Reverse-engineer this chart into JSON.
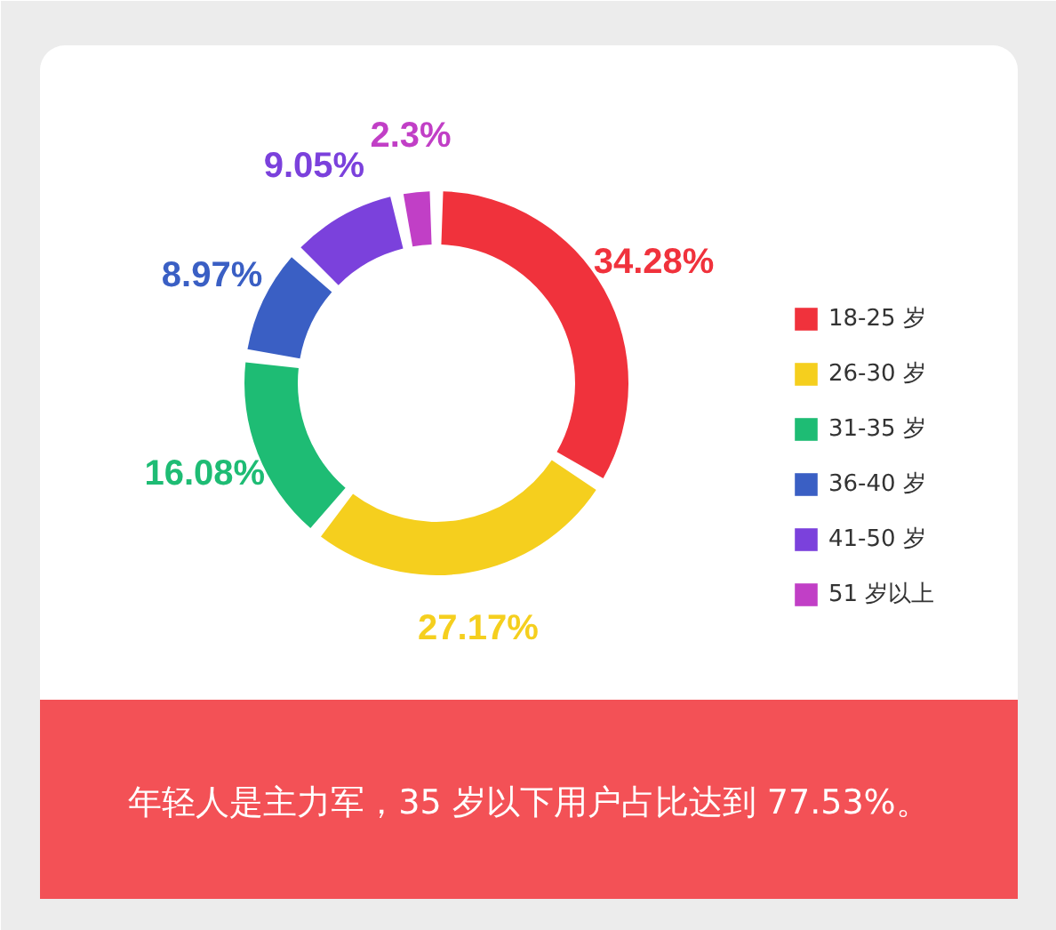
{
  "chart_data": {
    "type": "donut",
    "categories": [
      "18-25 岁",
      "26-30 岁",
      "31-35 岁",
      "36-40 岁",
      "41-50 岁",
      "51 岁以上"
    ],
    "values": [
      34.28,
      27.17,
      16.08,
      8.97,
      9.05,
      2.3
    ],
    "colors": [
      "#f0323c",
      "#f5cf1e",
      "#1ebc74",
      "#3a5fc4",
      "#7b41dc",
      "#c13fc6"
    ],
    "value_labels": [
      "34.28%",
      "27.17%",
      "16.08%",
      "8.97%",
      "9.05%",
      "2.3%"
    ],
    "legend": "right",
    "annotations": [
      "年轻人是主力军，35 岁以下用户占比达到 77.53%。"
    ]
  }
}
